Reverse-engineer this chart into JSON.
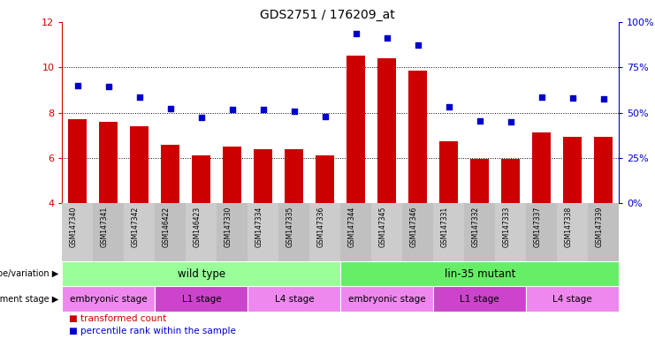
{
  "title": "GDS2751 / 176209_at",
  "samples": [
    "GSM147340",
    "GSM147341",
    "GSM147342",
    "GSM146422",
    "GSM146423",
    "GSM147330",
    "GSM147334",
    "GSM147335",
    "GSM147336",
    "GSM147344",
    "GSM147345",
    "GSM147346",
    "GSM147331",
    "GSM147332",
    "GSM147333",
    "GSM147337",
    "GSM147338",
    "GSM147339"
  ],
  "bar_values": [
    7.7,
    7.6,
    7.4,
    6.6,
    6.1,
    6.5,
    6.4,
    6.4,
    6.1,
    10.5,
    10.4,
    9.85,
    6.75,
    5.95,
    5.95,
    7.15,
    6.95,
    6.95
  ],
  "dot_values": [
    9.2,
    9.15,
    8.7,
    8.2,
    7.8,
    8.15,
    8.15,
    8.05,
    7.85,
    11.5,
    11.3,
    11.0,
    8.25,
    7.65,
    7.6,
    8.7,
    8.65,
    8.6
  ],
  "ylim_left": [
    4,
    12
  ],
  "ylim_right": [
    0,
    100
  ],
  "yticks_left": [
    4,
    6,
    8,
    10,
    12
  ],
  "yticks_right": [
    0,
    25,
    50,
    75,
    100
  ],
  "ytick_labels_right": [
    "0%",
    "25%",
    "50%",
    "75%",
    "100%"
  ],
  "bar_color": "#cc0000",
  "dot_color": "#0000cc",
  "bar_width": 0.6,
  "genotype_groups": [
    {
      "label": "wild type",
      "start": 0,
      "end": 9,
      "color": "#99ff99"
    },
    {
      "label": "lin-35 mutant",
      "start": 9,
      "end": 18,
      "color": "#66ee66"
    }
  ],
  "stage_groups": [
    {
      "label": "embryonic stage",
      "start": 0,
      "end": 3,
      "color": "#ee88ee"
    },
    {
      "label": "L1 stage",
      "start": 3,
      "end": 6,
      "color": "#cc44cc"
    },
    {
      "label": "L4 stage",
      "start": 6,
      "end": 9,
      "color": "#ee88ee"
    },
    {
      "label": "embryonic stage",
      "start": 9,
      "end": 12,
      "color": "#ee88ee"
    },
    {
      "label": "L1 stage",
      "start": 12,
      "end": 15,
      "color": "#cc44cc"
    },
    {
      "label": "L4 stage",
      "start": 15,
      "end": 18,
      "color": "#ee88ee"
    }
  ],
  "left_label_color": "#cc0000",
  "right_label_color": "#0000cc",
  "genotype_label": "genotype/variation",
  "stage_label": "development stage",
  "background_color": "#ffffff",
  "tick_bg_color": "#cccccc",
  "gridline_values": [
    6,
    8,
    10
  ]
}
